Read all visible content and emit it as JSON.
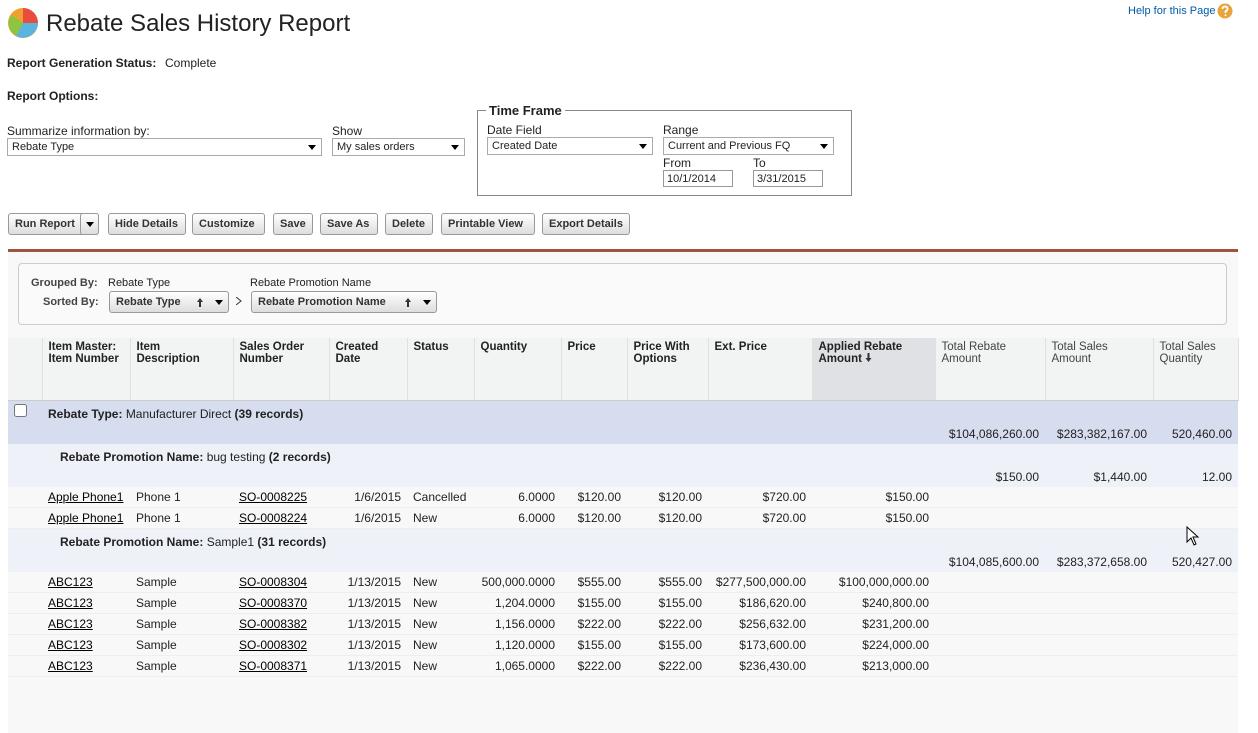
{
  "header": {
    "title": "Rebate Sales History Report",
    "help": "Help for this Page"
  },
  "status": {
    "label": "Report Generation Status:",
    "value": "Complete"
  },
  "options": {
    "label": "Report Options:",
    "summarize_label": "Summarize information by:",
    "summarize_value": "Rebate Type",
    "show_label": "Show",
    "show_value": "My sales orders"
  },
  "time_frame": {
    "title": "Time Frame",
    "date_field_label": "Date Field",
    "date_field_value": "Created Date",
    "range_label": "Range",
    "range_value": "Current and Previous FQ",
    "from_label": "From",
    "from_value": "10/1/2014",
    "to_label": "To",
    "to_value": "3/31/2015"
  },
  "buttons": [
    "Run Report",
    "Hide Details",
    "Customize",
    "Save",
    "Save As",
    "Delete",
    "Printable View",
    "Export Details"
  ],
  "grouping": {
    "grouped_label": "Grouped By:",
    "sorted_label": "Sorted By:",
    "levels": [
      "Rebate Type",
      "Rebate Promotion Name"
    ]
  },
  "table": {
    "columns": [
      "Item Master: Item Number",
      "Item Description",
      "Sales Order Number",
      "Created Date",
      "Status",
      "Quantity",
      "Price",
      "Price With Options",
      "Ext. Price",
      "Applied Rebate Amount",
      "Total Rebate Amount",
      "Total Sales Amount",
      "Total Sales Quantity"
    ],
    "groups": [
      {
        "label": "Rebate Type:",
        "value": "Manufacturer Direct",
        "count": "(39 records)",
        "totals": [
          "$104,086,260.00",
          "$283,382,167.00",
          "520,460.00"
        ],
        "subgroups": [
          {
            "label": "Rebate Promotion Name:",
            "value": "bug testing",
            "count": "(2 records)",
            "totals": [
              "$150.00",
              "$1,440.00",
              "12.00"
            ],
            "rows": [
              [
                "Apple Phone1",
                "Phone 1",
                "SO-0008225",
                "1/6/2015",
                "Cancelled",
                "6.0000",
                "$120.00",
                "$120.00",
                "$720.00",
                "$150.00"
              ],
              [
                "Apple Phone1",
                "Phone 1",
                "SO-0008224",
                "1/6/2015",
                "New",
                "6.0000",
                "$120.00",
                "$120.00",
                "$720.00",
                "$150.00"
              ]
            ]
          },
          {
            "label": "Rebate Promotion Name:",
            "value": "Sample1",
            "count": "(31 records)",
            "totals": [
              "$104,085,600.00",
              "$283,372,658.00",
              "520,427.00"
            ],
            "rows": [
              [
                "ABC123",
                "Sample",
                "SO-0008304",
                "1/13/2015",
                "New",
                "500,000.0000",
                "$555.00",
                "$555.00",
                "$277,500,000.00",
                "$100,000,000.00"
              ],
              [
                "ABC123",
                "Sample",
                "SO-0008370",
                "1/13/2015",
                "New",
                "1,204.0000",
                "$155.00",
                "$155.00",
                "$186,620.00",
                "$240,800.00"
              ],
              [
                "ABC123",
                "Sample",
                "SO-0008382",
                "1/13/2015",
                "New",
                "1,156.0000",
                "$222.00",
                "$222.00",
                "$256,632.00",
                "$231,200.00"
              ],
              [
                "ABC123",
                "Sample",
                "SO-0008302",
                "1/13/2015",
                "New",
                "1,120.0000",
                "$155.00",
                "$155.00",
                "$173,600.00",
                "$224,000.00"
              ],
              [
                "ABC123",
                "Sample",
                "SO-0008371",
                "1/13/2015",
                "New",
                "1,065.0000",
                "$222.00",
                "$222.00",
                "$236,430.00",
                "$213,000.00"
              ]
            ]
          }
        ]
      }
    ]
  }
}
